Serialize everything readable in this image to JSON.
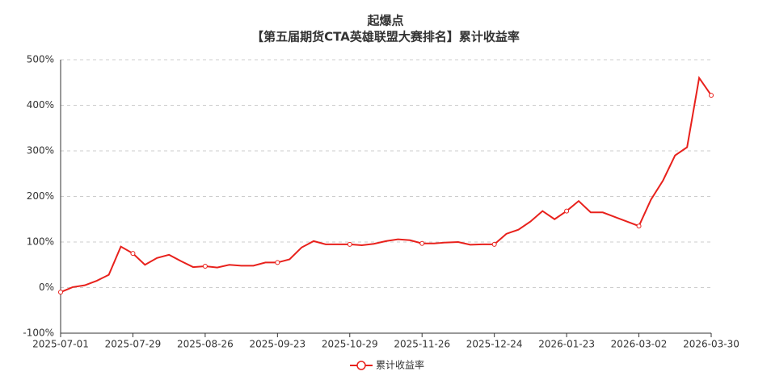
{
  "chart_data": {
    "type": "line",
    "title": "起爆点",
    "subtitle": "【第五届期货CTA英雄联盟大赛排名】累计收益率",
    "categories": [
      "2025-07-01",
      null,
      null,
      null,
      null,
      null,
      "2025-07-29",
      null,
      null,
      null,
      null,
      null,
      "2025-08-26",
      null,
      null,
      null,
      null,
      null,
      "2025-09-23",
      null,
      null,
      null,
      null,
      null,
      "2025-10-29",
      null,
      null,
      null,
      null,
      null,
      "2025-11-26",
      null,
      null,
      null,
      null,
      null,
      "2025-12-24",
      null,
      null,
      null,
      null,
      null,
      "2026-01-23",
      null,
      null,
      null,
      null,
      null,
      "2026-03-02",
      null,
      null,
      null,
      null,
      null,
      "2026-03-30"
    ],
    "series": [
      {
        "name": "累计收益率",
        "color": "#e8211c",
        "values": [
          -10,
          1,
          5,
          15,
          28,
          90,
          75,
          50,
          65,
          72,
          58,
          45,
          47,
          44,
          50,
          48,
          48,
          55,
          55,
          62,
          88,
          102,
          95,
          95,
          95,
          93,
          96,
          102,
          106,
          104,
          97,
          97,
          99,
          100,
          94,
          95,
          95,
          118,
          127,
          145,
          168,
          150,
          168,
          190,
          165,
          165,
          155,
          145,
          135,
          193,
          235,
          290,
          308,
          460,
          422
        ]
      }
    ],
    "ylim": [
      -100,
      500
    ],
    "yticks": [
      {
        "value": -100,
        "label": "-100%"
      },
      {
        "value": 0,
        "label": "0%"
      },
      {
        "value": 100,
        "label": "100%"
      },
      {
        "value": 200,
        "label": "200%"
      },
      {
        "value": 300,
        "label": "300%"
      },
      {
        "value": 400,
        "label": "400%"
      },
      {
        "value": 500,
        "label": "500%"
      }
    ],
    "grid": true,
    "legend": "bottom"
  }
}
